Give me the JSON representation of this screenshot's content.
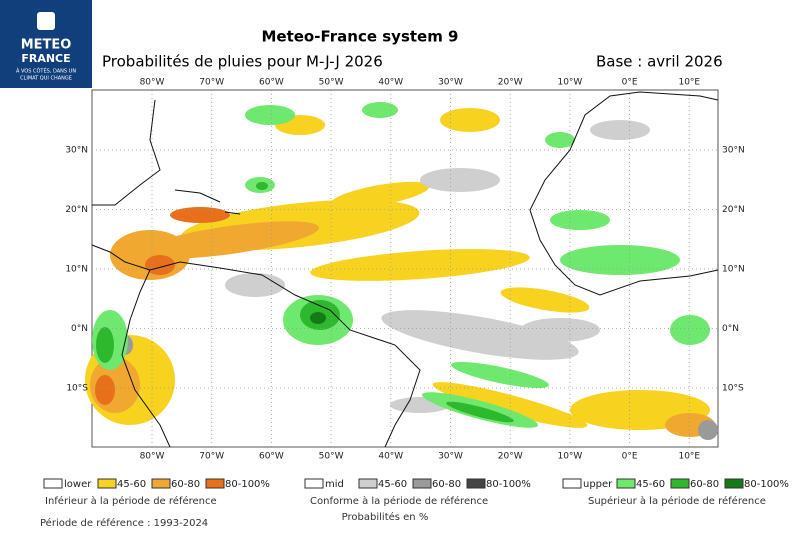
{
  "logo": {
    "line1": "METEO",
    "line2": "FRANCE",
    "tagline1": "À VOS CÔTÉS, DANS UN",
    "tagline2": "CLIMAT QUI CHANGE"
  },
  "header": {
    "title": "Meteo-France system 9",
    "subtitle": "Probabilités de pluies pour M-J-J 2026",
    "base": "Base : avril 2026"
  },
  "map": {
    "longitudes": [
      "80°W",
      "70°W",
      "60°W",
      "50°W",
      "40°W",
      "30°W",
      "20°W",
      "10°W",
      "0°E",
      "10°E"
    ],
    "latitudes": [
      "30°N",
      "20°N",
      "10°N",
      "0°N",
      "10°S"
    ]
  },
  "legend": {
    "lower": {
      "name": "lower",
      "items": [
        "45-60",
        "60-80",
        "80-100%"
      ],
      "caption": "Inférieur à la période de référence"
    },
    "mid": {
      "name": "mid",
      "items": [
        "45-60",
        "60-80",
        "80-100%"
      ],
      "caption": "Conforme à la période de référence",
      "unit": "Probabilités en %"
    },
    "upper": {
      "name": "upper",
      "items": [
        "45-60",
        "60-80",
        "80-100%"
      ],
      "caption": "Supérieur à la période de référence"
    }
  },
  "footer": {
    "reference": "Période de référence : 1993-2024"
  }
}
